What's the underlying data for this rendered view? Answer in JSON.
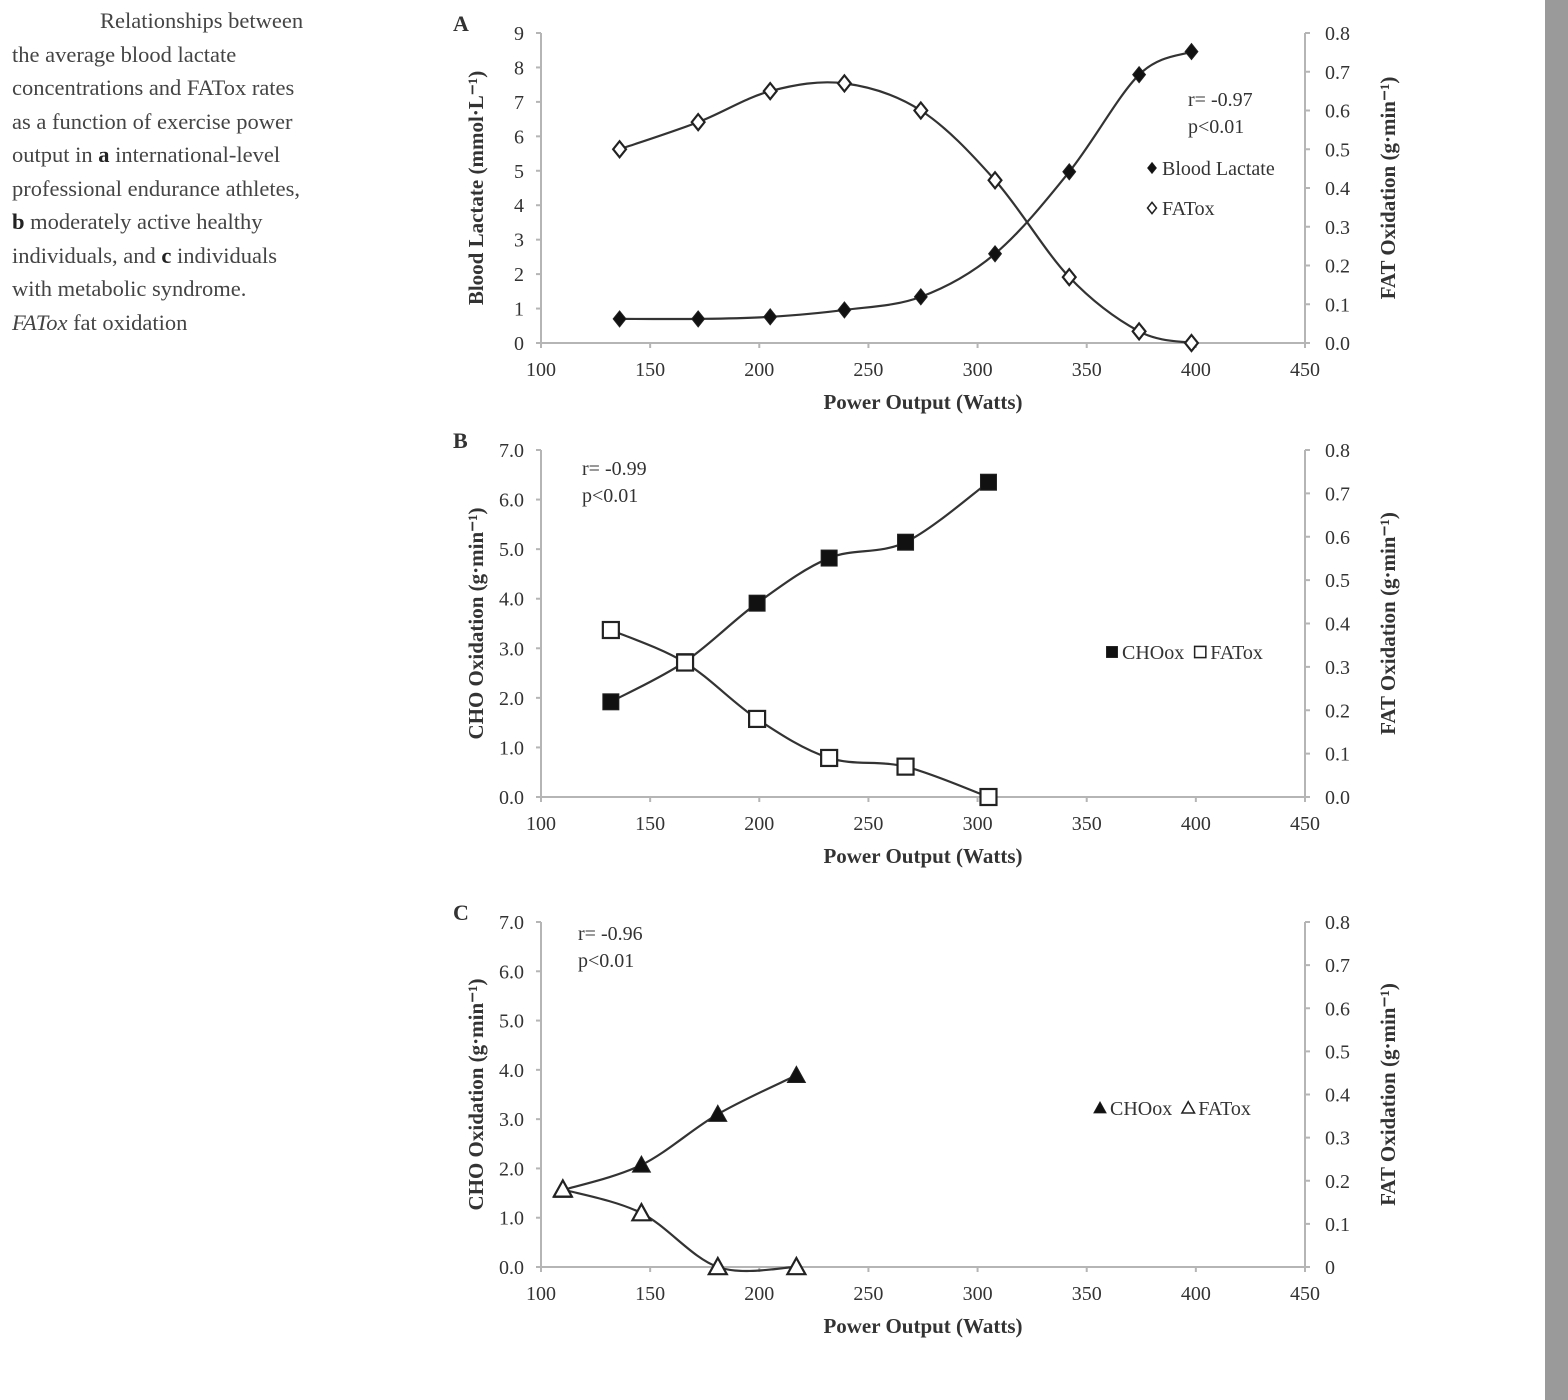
{
  "caption": {
    "lines": [
      [
        {
          "t": "Relationships between"
        }
      ],
      [
        {
          "t": "the average blood lactate"
        }
      ],
      [
        {
          "t": "concentrations and FATox rates"
        }
      ],
      [
        {
          "t": "as a function of exercise power"
        }
      ],
      [
        {
          "t": "output in "
        },
        {
          "t": "a",
          "b": true
        },
        {
          "t": " international-level"
        }
      ],
      [
        {
          "t": "professional endurance athletes,"
        }
      ],
      [
        {
          "t": "b",
          "b": true
        },
        {
          "t": " moderately active healthy"
        }
      ],
      [
        {
          "t": "individuals, and "
        },
        {
          "t": "c",
          "b": true
        },
        {
          "t": " individuals"
        }
      ],
      [
        {
          "t": "with metabolic syndrome."
        }
      ],
      [
        {
          "t": "FATox",
          "i": true
        },
        {
          "t": " fat oxidation"
        }
      ]
    ]
  },
  "chart_data": [
    {
      "type": "line",
      "panel": "A",
      "xlabel": "Power Output (Watts)",
      "ylabel": "Blood Lactate (mmol·L⁻¹)",
      "y2label": "FAT Oxidation (g·min⁻¹)",
      "xlim": [
        100,
        450
      ],
      "xticks": [
        "100",
        "150",
        "200",
        "250",
        "300",
        "350",
        "400",
        "450"
      ],
      "ylim": [
        0,
        9
      ],
      "yticks": [
        "0",
        "1",
        "2",
        "3",
        "4",
        "5",
        "6",
        "7",
        "8",
        "9"
      ],
      "y2lim": [
        0,
        0.8
      ],
      "y2ticks": [
        "0.0",
        "0.1",
        "0.2",
        "0.3",
        "0.4",
        "0.5",
        "0.6",
        "0.7",
        "0.8"
      ],
      "annotation": [
        "r= -0.97",
        "p<0.01"
      ],
      "legend_layout": "vertical",
      "series": [
        {
          "name": "Blood Lactate",
          "axis": "left",
          "marker": "diamond-filled",
          "x": [
            136,
            172,
            205,
            239,
            274,
            308,
            342,
            374,
            398
          ],
          "y": [
            0.7,
            0.7,
            0.76,
            0.96,
            1.34,
            2.59,
            4.97,
            7.79,
            8.46
          ]
        },
        {
          "name": "FATox",
          "axis": "right",
          "marker": "diamond-open",
          "x": [
            136,
            172,
            205,
            239,
            274,
            308,
            342,
            374,
            398
          ],
          "y": [
            0.5,
            0.57,
            0.65,
            0.67,
            0.6,
            0.42,
            0.17,
            0.03,
            0.0
          ]
        }
      ]
    },
    {
      "type": "line",
      "panel": "B",
      "xlabel": "Power Output (Watts)",
      "ylabel": "CHO Oxidation (g·min⁻¹)",
      "y2label": "FAT Oxidation (g·min⁻¹)",
      "xlim": [
        100,
        450
      ],
      "xticks": [
        "100",
        "150",
        "200",
        "250",
        "300",
        "350",
        "400",
        "450"
      ],
      "ylim": [
        0,
        7
      ],
      "yticks": [
        "0.0",
        "1.0",
        "2.0",
        "3.0",
        "4.0",
        "5.0",
        "6.0",
        "7.0"
      ],
      "y2lim": [
        0,
        0.8
      ],
      "y2ticks": [
        "0.0",
        "0.1",
        "0.2",
        "0.3",
        "0.4",
        "0.5",
        "0.6",
        "0.7",
        "0.8"
      ],
      "annotation": [
        "r= -0.99",
        "p<0.01"
      ],
      "legend_layout": "horizontal",
      "series": [
        {
          "name": "CHOox",
          "axis": "left",
          "marker": "square-filled",
          "x": [
            132,
            166,
            199,
            232,
            267,
            305
          ],
          "y": [
            1.92,
            2.73,
            3.91,
            4.82,
            5.14,
            6.35
          ]
        },
        {
          "name": "FATox",
          "axis": "right",
          "marker": "square-open",
          "x": [
            132,
            166,
            199,
            232,
            267,
            305
          ],
          "y": [
            0.385,
            0.31,
            0.18,
            0.09,
            0.07,
            0.0
          ]
        }
      ]
    },
    {
      "type": "line",
      "panel": "C",
      "xlabel": "Power Output (Watts)",
      "ylabel": "CHO Oxidation (g·min⁻¹)",
      "y2label": "FAT Oxidation (g·min⁻¹)",
      "xlim": [
        100,
        450
      ],
      "xticks": [
        "100",
        "150",
        "200",
        "250",
        "300",
        "350",
        "400",
        "450"
      ],
      "ylim": [
        0,
        7
      ],
      "yticks": [
        "0.0",
        "1.0",
        "2.0",
        "3.0",
        "4.0",
        "5.0",
        "6.0",
        "7.0"
      ],
      "y2lim": [
        0,
        0.8
      ],
      "y2ticks": [
        "0",
        "0.1",
        "0.2",
        "0.3",
        "0.4",
        "0.5",
        "0.6",
        "0.7",
        "0.8"
      ],
      "annotation": [
        "r= -0.96",
        "p<0.01"
      ],
      "legend_layout": "horizontal",
      "series": [
        {
          "name": "CHOox",
          "axis": "left",
          "marker": "triangle-filled",
          "x": [
            110,
            146,
            181,
            217
          ],
          "y": [
            1.56,
            2.07,
            3.1,
            3.89
          ]
        },
        {
          "name": "FATox",
          "axis": "right",
          "marker": "triangle-open",
          "x": [
            110,
            146,
            181,
            217
          ],
          "y": [
            0.18,
            0.125,
            0.0,
            0.0
          ]
        }
      ]
    }
  ]
}
